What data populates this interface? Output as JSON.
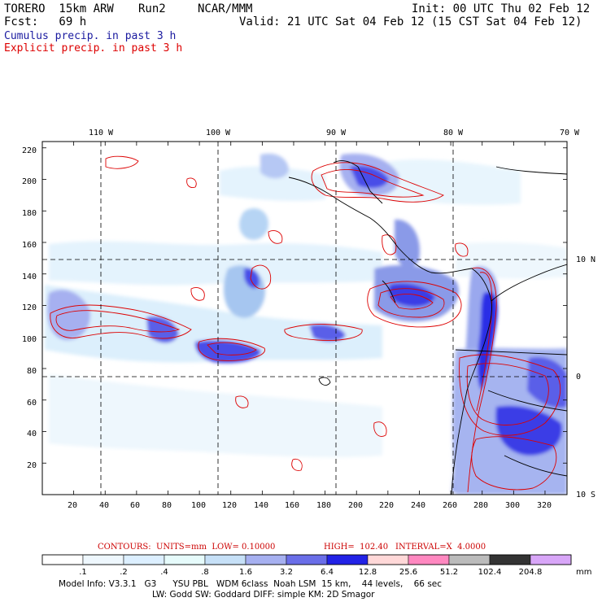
{
  "header": {
    "model": "TORERO  15km ARW",
    "run": "Run2",
    "org": "NCAR/MMM",
    "init": "Init: 00 UTC Thu 02 Feb 12",
    "fcst": "Fcst:   69 h",
    "valid": "Valid: 21 UTC Sat 04 Feb 12 (15 CST Sat 04 Feb 12)"
  },
  "fields": {
    "cumulus": "Cumulus precip. in past 3 h",
    "explicit": "Explicit precip. in past 3 h",
    "cumulus_color": "#1a1aa0",
    "explicit_color": "#dd0000"
  },
  "map": {
    "x_ticks": [
      "20",
      "40",
      "60",
      "80",
      "100",
      "120",
      "140",
      "160",
      "180",
      "200",
      "220",
      "240",
      "260",
      "280",
      "300",
      "320"
    ],
    "y_ticks": [
      "20",
      "40",
      "60",
      "80",
      "100",
      "120",
      "140",
      "160",
      "180",
      "200",
      "220"
    ],
    "lon_labels": [
      "110 W",
      "100 W",
      "90 W",
      "80 W",
      "70 W"
    ],
    "lat_labels": [
      "10 N",
      "0",
      "10 S"
    ],
    "x_range": [
      0,
      334
    ],
    "y_range": [
      0,
      224
    ]
  },
  "contours": {
    "units": "CONTOURS:  UNITS=mm  LOW= 0.10000",
    "high": "HIGH=  102.40",
    "interval": "INTERVAL=X  4.0000"
  },
  "colorbar": {
    "labels": [
      ".1",
      ".2",
      ".4",
      ".8",
      "1.6",
      "3.2",
      "6.4",
      "12.8",
      "25.6",
      "51.2",
      "102.4",
      "204.8"
    ],
    "unit": "mm",
    "colors": [
      "#ffffff",
      "#eef7fd",
      "#dcefff",
      "#e6fbfb",
      "#c6e0f7",
      "#a6b0f0",
      "#6a6ee8",
      "#2222e6",
      "#ffd8d8",
      "#ff88c0",
      "#bbbbbb",
      "#333333",
      "#d8a6f8"
    ]
  },
  "footer": {
    "line1": "Model Info: V3.3.1   G3      YSU PBL   WDM 6class  Noah LSM  15 km,    44 levels,    66 sec",
    "line2": "LW: Godd SW: Goddard DIFF: simple KM: 2D Smagor"
  }
}
